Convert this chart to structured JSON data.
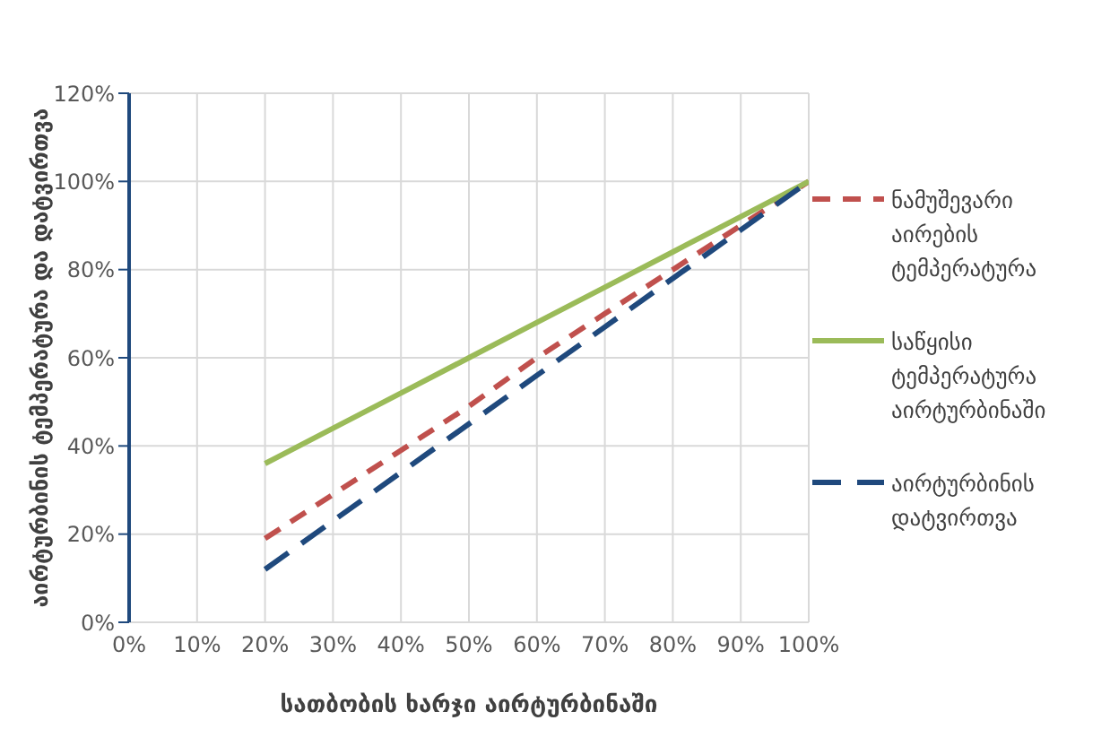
{
  "chart_data": {
    "type": "line",
    "xlabel": "სათბობის ხარჯი აირტურბინაში",
    "ylabel": "აირტურბინის ტემპერატურა და დატვირთვა",
    "x": [
      20,
      30,
      40,
      50,
      60,
      70,
      80,
      90,
      100
    ],
    "series": [
      {
        "name": "ნამუშევარი აირების ტემპერატურა",
        "color": "#c0504d",
        "line_style": "dashed",
        "values": [
          19,
          29,
          39,
          49,
          60,
          70,
          80,
          90,
          100
        ]
      },
      {
        "name": "საწყისი ტემპერატურა აირტურბინაში",
        "color": "#9bbb59",
        "line_style": "solid",
        "values": [
          36,
          44,
          52,
          60,
          68,
          76,
          84,
          92,
          100
        ]
      },
      {
        "name": "აირტურბინის დატვირთვა",
        "color": "#1f497d",
        "line_style": "longdash",
        "values": [
          12,
          23,
          34,
          45,
          56,
          67,
          78,
          89,
          100
        ]
      }
    ],
    "xlim": [
      0,
      100
    ],
    "xticks": [
      {
        "value": 0,
        "label": "0%"
      },
      {
        "value": 10,
        "label": "10%"
      },
      {
        "value": 20,
        "label": "20%"
      },
      {
        "value": 30,
        "label": "30%"
      },
      {
        "value": 40,
        "label": "40%"
      },
      {
        "value": 50,
        "label": "50%"
      },
      {
        "value": 60,
        "label": "60%"
      },
      {
        "value": 70,
        "label": "70%"
      },
      {
        "value": 80,
        "label": "80%"
      },
      {
        "value": 90,
        "label": "90%"
      },
      {
        "value": 100,
        "label": "100%"
      }
    ],
    "ylim": [
      0,
      120
    ],
    "yticks": [
      {
        "value": 0,
        "label": "0%"
      },
      {
        "value": 20,
        "label": "20%"
      },
      {
        "value": 40,
        "label": "40%"
      },
      {
        "value": 60,
        "label": "60%"
      },
      {
        "value": 80,
        "label": "80%"
      },
      {
        "value": 100,
        "label": "100%"
      },
      {
        "value": 120,
        "label": "120%"
      }
    ],
    "grid": true,
    "legend": "right",
    "marker": "none"
  }
}
